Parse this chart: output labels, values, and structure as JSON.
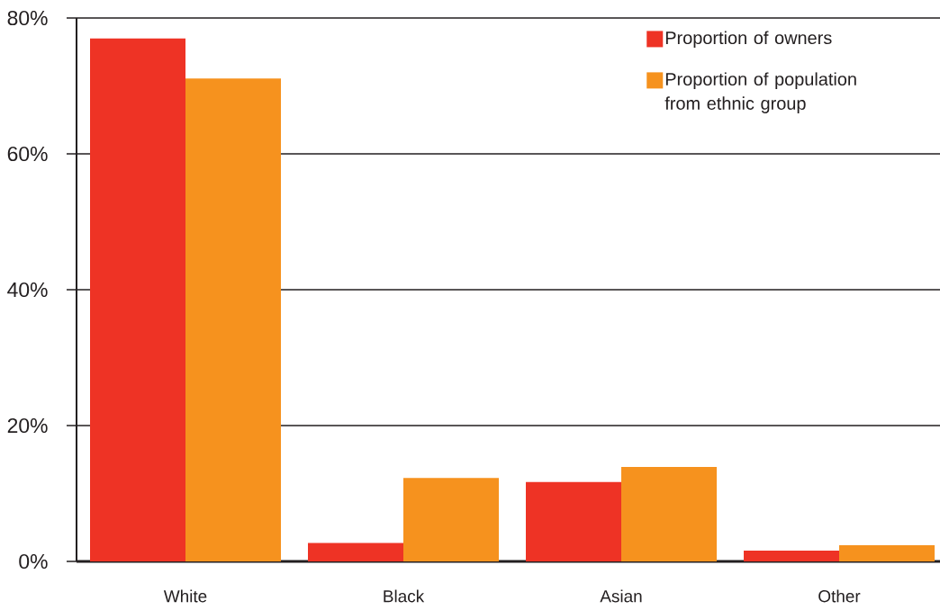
{
  "chart_data": {
    "type": "bar",
    "categories": [
      "White",
      "Black",
      "Asian",
      "Other"
    ],
    "series": [
      {
        "name": "Proportion of owners",
        "color": "#ee3325",
        "values": [
          77,
          2.7,
          11.7,
          1.6
        ]
      },
      {
        "name": "Proportion of population from ethnic group",
        "color": "#f6921e",
        "values": [
          71.1,
          12.3,
          13.9,
          2.4
        ]
      }
    ],
    "ylim": [
      0,
      80
    ],
    "yticks": [
      {
        "value": 0,
        "label": "0%"
      },
      {
        "value": 20,
        "label": "20%"
      },
      {
        "value": 40,
        "label": "40%"
      },
      {
        "value": 60,
        "label": "60%"
      },
      {
        "value": 80,
        "label": "80%"
      }
    ],
    "grid": "y",
    "legend": "top right"
  }
}
